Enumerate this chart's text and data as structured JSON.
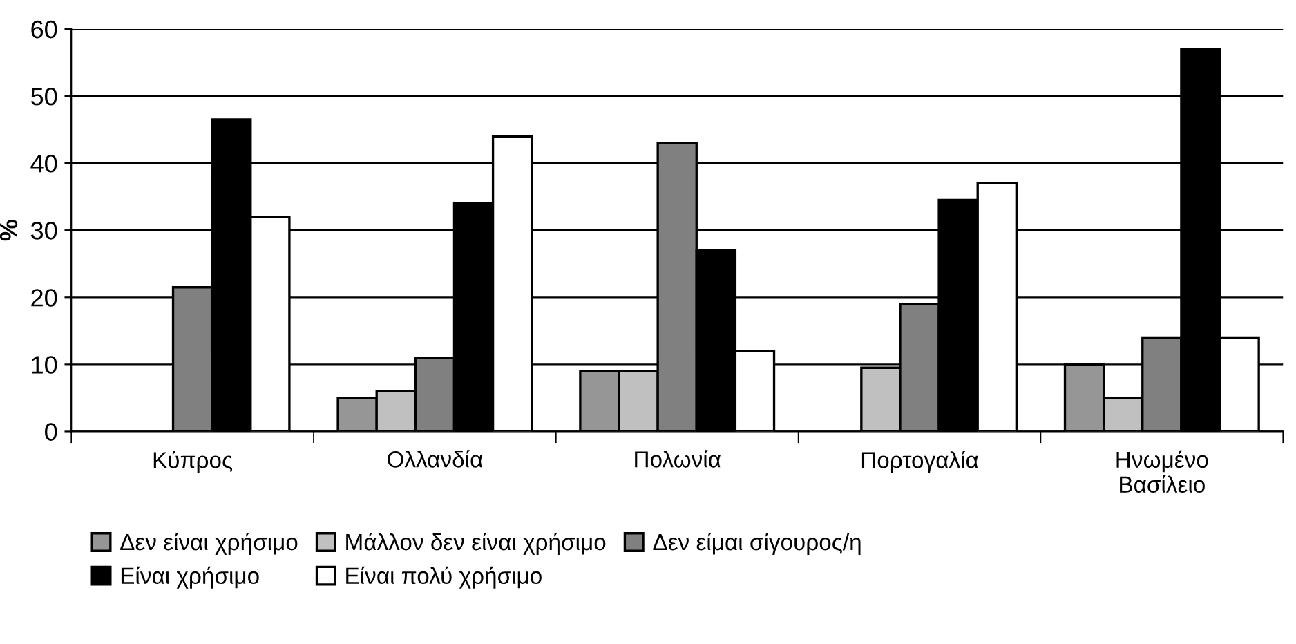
{
  "chart_data": {
    "type": "bar",
    "ylabel": "%",
    "categories": [
      "Κύπρος",
      "Ολλανδία",
      "Πολωνία",
      "Πορτογαλία",
      "Ηνωμένο\nΒασίλειο"
    ],
    "series": [
      {
        "name": "Δεν είναι χρήσιμο",
        "color": "#969696",
        "values": [
          null,
          5,
          9,
          null,
          10
        ]
      },
      {
        "name": "Μάλλον δεν είναι χρήσιμο",
        "color": "#c0c0c0",
        "values": [
          null,
          6,
          9,
          9.5,
          5
        ]
      },
      {
        "name": "Δεν είμαι σίγουρος/η",
        "color": "#808080",
        "values": [
          21.5,
          11,
          43,
          19,
          14
        ]
      },
      {
        "name": "Είναι χρήσιμο",
        "color": "#000000",
        "values": [
          46.5,
          34,
          27,
          34.5,
          57
        ]
      },
      {
        "name": "Είναι πολύ χρήσιμο",
        "color": "#ffffff",
        "values": [
          32,
          44,
          12,
          37,
          14
        ]
      }
    ],
    "ylim": [
      0,
      60
    ],
    "yticks": [
      0,
      10,
      20,
      30,
      40,
      50,
      60
    ],
    "grid": "y",
    "legend": "bottom"
  }
}
